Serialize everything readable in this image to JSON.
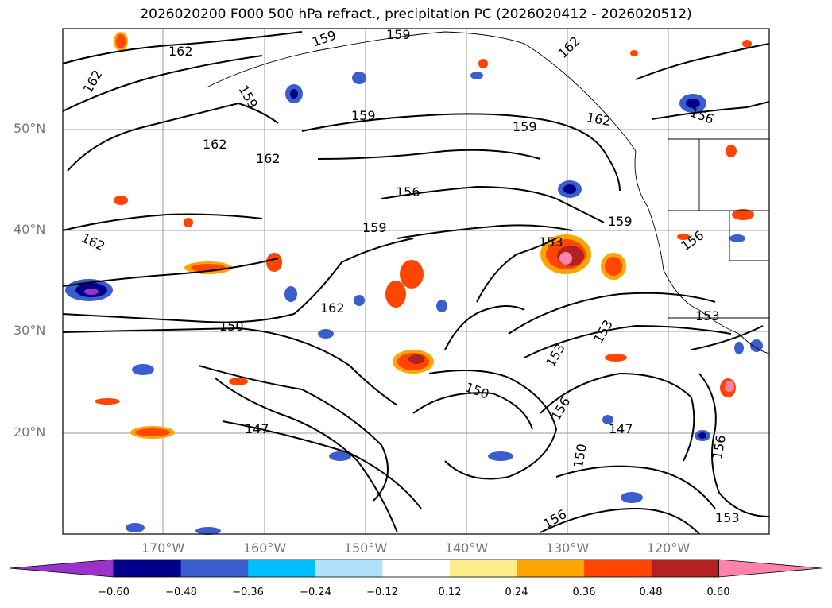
{
  "title": "2026020200 F000 500 hPa refract., precipitation PC (2026020412 - 2026020512)",
  "lat_labels": [
    "50°N",
    "40°N",
    "30°N",
    "20°N"
  ],
  "lon_labels": [
    "170°W",
    "160°W",
    "150°W",
    "140°W",
    "130°W",
    "120°W"
  ],
  "colorbar": {
    "ticks": [
      "−0.60",
      "−0.48",
      "−0.36",
      "−0.24",
      "−0.12",
      "0.12",
      "0.24",
      "0.36",
      "0.48",
      "0.60"
    ],
    "colors": [
      "#9933cc",
      "#00008b",
      "#3a5fcd",
      "#00bfff",
      "#b0e2ff",
      "#ffffff",
      "#ffec8b",
      "#ffa500",
      "#ff4500",
      "#b22222",
      "#ff82ab"
    ]
  },
  "contour_labels": [
    "162",
    "162",
    "159",
    "159",
    "159",
    "159",
    "162",
    "162",
    "162",
    "159",
    "156",
    "159",
    "153",
    "162",
    "150",
    "147",
    "150",
    "153",
    "153",
    "156",
    "150",
    "147",
    "156",
    "153",
    "156",
    "156",
    "153",
    "162",
    "159",
    "162",
    "156"
  ]
}
